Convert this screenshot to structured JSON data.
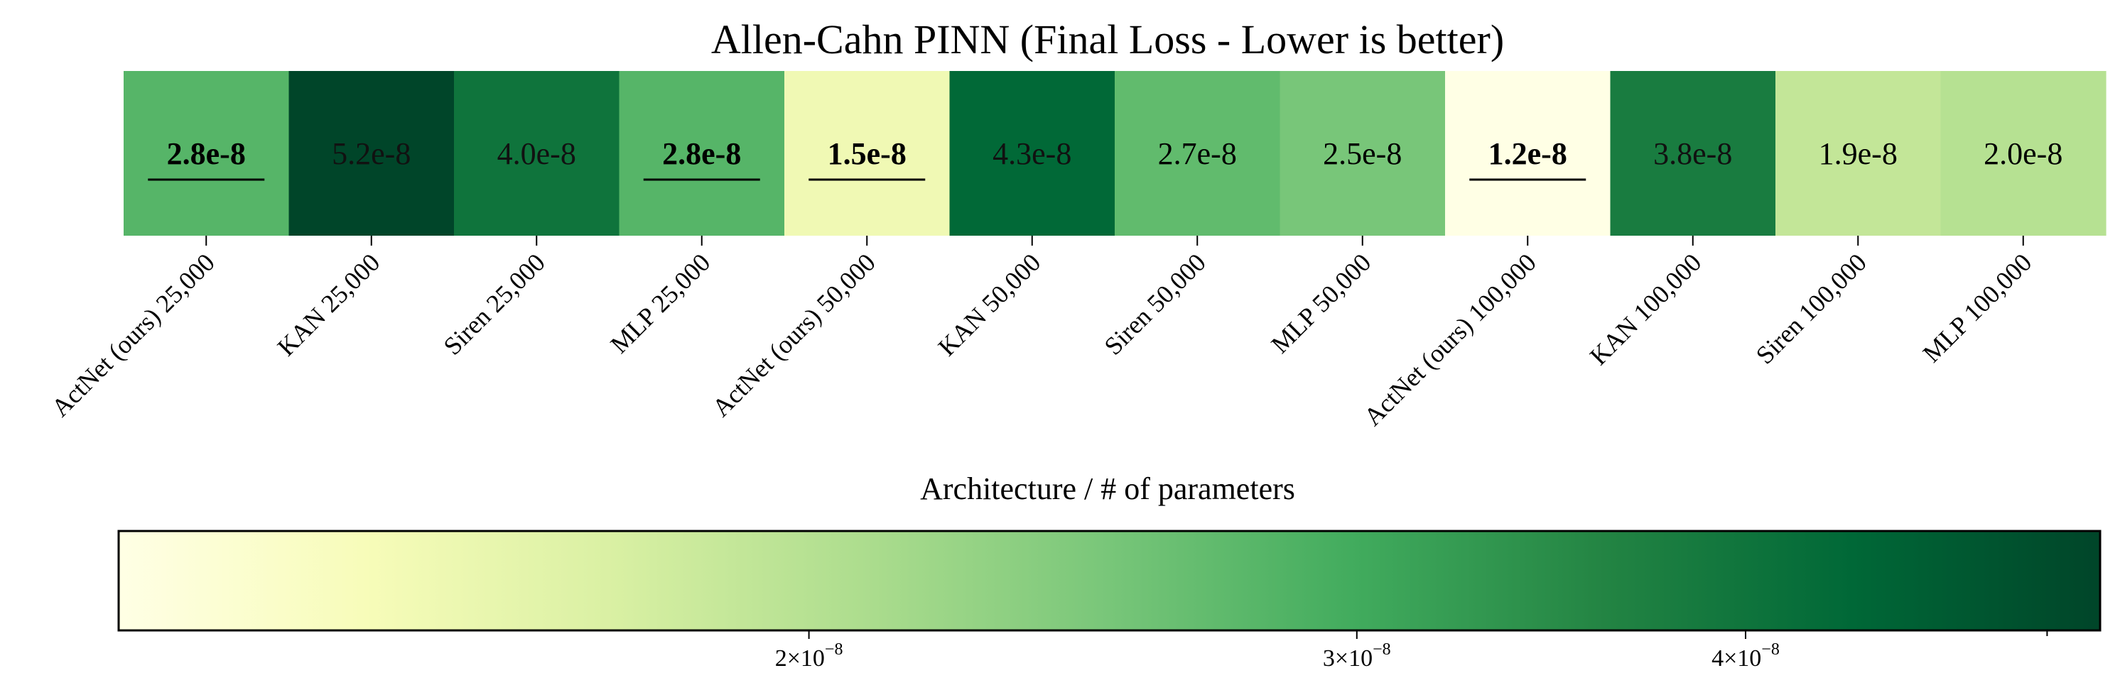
{
  "chart_data": {
    "type": "heatmap",
    "title": "Allen-Cahn PINN (Final Loss - Lower is better)",
    "xlabel": "Architecture / # of parameters",
    "groups": [
      {
        "parameters": "25,000",
        "cells": [
          {
            "label": "ActNet (ours) 25,000",
            "value": 2.8e-08,
            "display": "2.8e-8",
            "best": true
          },
          {
            "label": "KAN 25,000",
            "value": 5.2e-08,
            "display": "5.2e-8",
            "best": false
          },
          {
            "label": "Siren 25,000",
            "value": 4e-08,
            "display": "4.0e-8",
            "best": false
          },
          {
            "label": "MLP 25,000",
            "value": 2.8e-08,
            "display": "2.8e-8",
            "best": true
          }
        ]
      },
      {
        "parameters": "50,000",
        "cells": [
          {
            "label": "ActNet (ours) 50,000",
            "value": 1.5e-08,
            "display": "1.5e-8",
            "best": true
          },
          {
            "label": "KAN 50,000",
            "value": 4.3e-08,
            "display": "4.3e-8",
            "best": false
          },
          {
            "label": "Siren 50,000",
            "value": 2.7e-08,
            "display": "2.7e-8",
            "best": false
          },
          {
            "label": "MLP 50,000",
            "value": 2.5e-08,
            "display": "2.5e-8",
            "best": false
          }
        ]
      },
      {
        "parameters": "100,000",
        "cells": [
          {
            "label": "ActNet (ours) 100,000",
            "value": 1.2e-08,
            "display": "1.2e-8",
            "best": true
          },
          {
            "label": "KAN 100,000",
            "value": 3.8e-08,
            "display": "3.8e-8",
            "best": false
          },
          {
            "label": "Siren 100,000",
            "value": 1.9e-08,
            "display": "1.9e-8",
            "best": false
          },
          {
            "label": "MLP 100,000",
            "value": 2e-08,
            "display": "2.0e-8",
            "best": false
          }
        ]
      }
    ],
    "colormap": "YlGn",
    "color_scale": "log",
    "colorbar": {
      "range": [
        1.2e-08,
        5.2e-08
      ],
      "ticks": [
        {
          "value": 2e-08,
          "mantissa": "2",
          "exponent": "−8"
        },
        {
          "value": 3e-08,
          "mantissa": "3",
          "exponent": "−8"
        },
        {
          "value": 4e-08,
          "mantissa": "4",
          "exponent": "−8"
        }
      ],
      "times_symbol": "×",
      "base": "10"
    },
    "colors": [
      "#ffffe5",
      "#f7fcb9",
      "#d9f0a3",
      "#addd8e",
      "#78c679",
      "#41ab5d",
      "#238443",
      "#006837",
      "#004529"
    ]
  }
}
